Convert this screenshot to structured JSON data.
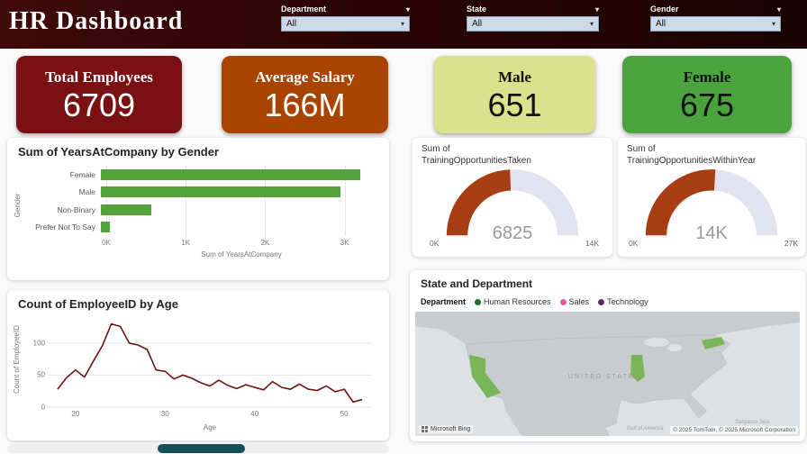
{
  "header": {
    "title": "HR Dashboard",
    "filters": [
      {
        "label": "Department",
        "value": "All"
      },
      {
        "label": "State",
        "value": "All"
      },
      {
        "label": "Gender",
        "value": "All"
      }
    ]
  },
  "kpis": [
    {
      "label": "Total Employees",
      "value": "6709",
      "bg": "#7a1013",
      "fg": "#ffffff"
    },
    {
      "label": "Average Salary",
      "value": "166M",
      "bg": "#a84300",
      "fg": "#ffffff"
    },
    {
      "label": "Male",
      "value": "651",
      "bg": "#d9e38b",
      "fg": "#111111"
    },
    {
      "label": "Female",
      "value": "675",
      "bg": "#4aa33d",
      "fg": "#111111"
    }
  ],
  "chart_data": [
    {
      "id": "years_by_gender",
      "type": "bar",
      "orientation": "horizontal",
      "title": "Sum of YearsAtCompany by Gender",
      "categories": [
        "Female",
        "Male",
        "Non-Binary",
        "Prefer Not To Say"
      ],
      "values": [
        3200,
        2950,
        620,
        110
      ],
      "xlabel": "Sum of YearsAtCompany",
      "ylabel": "Gender",
      "xlim": [
        0,
        3400
      ],
      "xticks": [
        {
          "v": 0,
          "label": "0K"
        },
        {
          "v": 1000,
          "label": "1K"
        },
        {
          "v": 2000,
          "label": "2K"
        },
        {
          "v": 3000,
          "label": "3K"
        }
      ],
      "bar_color": "#53a33a",
      "grid": true,
      "legend": "none"
    },
    {
      "id": "training_taken",
      "type": "gauge",
      "title": "Sum of TrainingOpportunitiesTaken",
      "value": 6825,
      "value_label": "6825",
      "min": 0,
      "max": 14000,
      "min_label": "0K",
      "max_label": "14K",
      "fill_color": "#a83c12",
      "track_color": "#e3e2f1"
    },
    {
      "id": "training_within_year",
      "type": "gauge",
      "title": "Sum of TrainingOpportunitiesWithinYear",
      "value": 14000,
      "value_label": "14K",
      "min": 0,
      "max": 27000,
      "min_label": "0K",
      "max_label": "27K",
      "fill_color": "#a83c12",
      "track_color": "#e3e2f1"
    },
    {
      "id": "count_by_age",
      "type": "line",
      "title": "Count of EmployeeID by Age",
      "xlabel": "Age",
      "ylabel": "Count of EmployeeID",
      "x": [
        18,
        19,
        20,
        21,
        22,
        23,
        24,
        25,
        26,
        27,
        28,
        29,
        30,
        31,
        32,
        33,
        34,
        35,
        36,
        37,
        38,
        39,
        40,
        41,
        42,
        43,
        44,
        45,
        46,
        47,
        48,
        49,
        50,
        51,
        52
      ],
      "y": [
        28,
        46,
        58,
        47,
        72,
        96,
        130,
        126,
        100,
        97,
        90,
        58,
        56,
        44,
        50,
        45,
        38,
        33,
        42,
        34,
        29,
        35,
        31,
        27,
        40,
        31,
        28,
        36,
        28,
        26,
        33,
        24,
        28,
        8,
        12
      ],
      "xlim": [
        17,
        53
      ],
      "ylim": [
        0,
        135
      ],
      "xticks": [
        20,
        30,
        40,
        50
      ],
      "yticks": [
        0,
        50,
        100
      ],
      "line_color": "#6e1414",
      "grid": true
    },
    {
      "id": "state_department_map",
      "type": "map",
      "title": "State and Department",
      "legend_title": "Department",
      "legend": [
        {
          "label": "Human Resources",
          "color": "#1d7030"
        },
        {
          "label": "Sales",
          "color": "#e25aa2"
        },
        {
          "label": "Technology",
          "color": "#5f2a68"
        }
      ],
      "highlight_color": "#79b65a",
      "map_labels": [
        "UNITED STATES",
        "Gulf of America",
        "Sargasso Sea"
      ],
      "attribution_left": "Microsoft Bing",
      "attribution_right": "© 2025 TomTom, © 2025 Microsoft Corporation"
    }
  ]
}
